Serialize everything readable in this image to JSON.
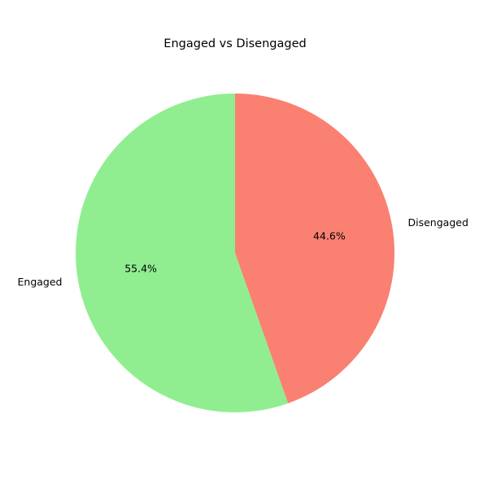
{
  "chart_data": {
    "type": "pie",
    "title": "Engaged vs Disengaged",
    "slices": [
      {
        "label": "Engaged",
        "value": 55.4,
        "pct_text": "55.4%",
        "color": "#90ee90"
      },
      {
        "label": "Disengaged",
        "value": 44.6,
        "pct_text": "44.6%",
        "color": "#fa8072"
      }
    ],
    "start_angle_deg": 90,
    "direction": "counterclockwise",
    "legend": "none",
    "grid": false
  }
}
